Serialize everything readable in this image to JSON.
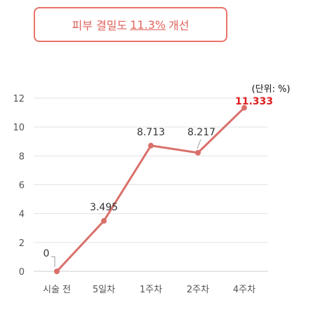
{
  "headline": {
    "prefix": "피부 결밀도",
    "highlight": "11.3%",
    "suffix": "개선"
  },
  "chart_data": {
    "type": "line",
    "categories": [
      "시술 전",
      "5일차",
      "1주차",
      "2주차",
      "4주차"
    ],
    "values": [
      0,
      3.495,
      8.713,
      8.217,
      11.333
    ],
    "data_labels": [
      "0",
      "3.495",
      "8.713",
      "8.217",
      "11.333"
    ],
    "unit_label": "(단위: %)",
    "ylim": [
      0,
      12
    ],
    "yticks": [
      "0",
      "2",
      "4",
      "6",
      "8",
      "10",
      "12"
    ],
    "grid": true,
    "highlight_index": 4,
    "colors": {
      "line": "#d9706a",
      "highlight_label": "#e01e1e",
      "grid": "#e3e3e3"
    }
  }
}
